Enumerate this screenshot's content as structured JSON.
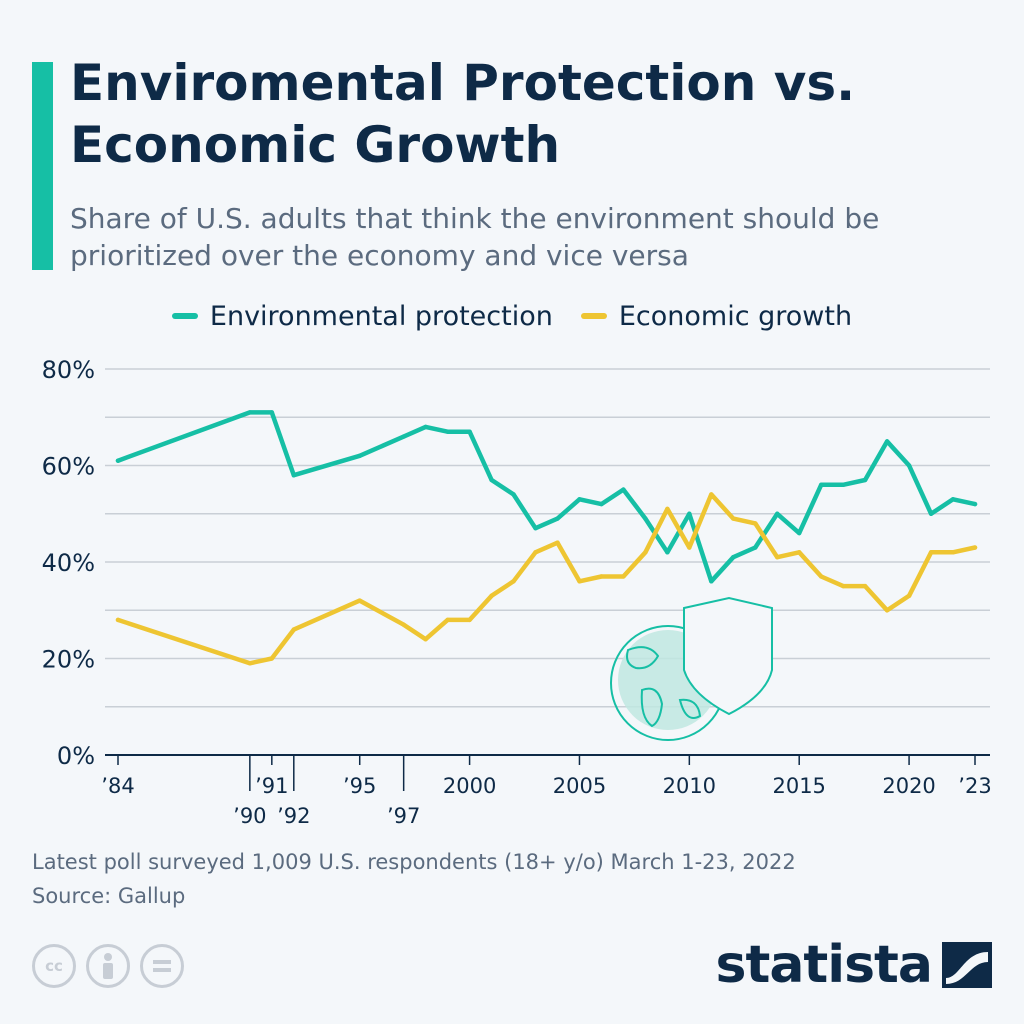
{
  "header": {
    "title": "Enviromental Protection vs. Economic Growth",
    "subtitle": "Share of U.S. adults that think the environment should be prioritized over the economy and vice versa"
  },
  "colors": {
    "accent": "#16bfa5",
    "environment": "#16bfa5",
    "economy": "#eec532",
    "text_dark": "#0e2a47",
    "grid": "#c9cfd6"
  },
  "chart_data": {
    "type": "line",
    "title": "Enviromental Protection vs. Economic Growth",
    "subtitle": "Share of U.S. adults that think the environment should be prioritized over the economy and vice versa",
    "x": [
      1984,
      1990,
      1991,
      1992,
      1995,
      1997,
      1998,
      1999,
      2000,
      2001,
      2002,
      2003,
      2004,
      2005,
      2006,
      2007,
      2008,
      2009,
      2010,
      2011,
      2012,
      2013,
      2014,
      2015,
      2016,
      2017,
      2018,
      2019,
      2020,
      2021,
      2022,
      2023
    ],
    "series": [
      {
        "name": "Environmental protection",
        "color": "#16bfa5",
        "values": [
          61,
          71,
          71,
          58,
          62,
          66,
          68,
          67,
          67,
          57,
          54,
          47,
          49,
          53,
          52,
          55,
          49,
          42,
          50,
          36,
          41,
          43,
          50,
          46,
          56,
          56,
          57,
          65,
          60,
          50,
          53,
          52
        ]
      },
      {
        "name": "Economic growth",
        "color": "#eec532",
        "values": [
          28,
          19,
          20,
          26,
          32,
          27,
          24,
          28,
          28,
          33,
          36,
          42,
          44,
          36,
          37,
          37,
          42,
          51,
          43,
          54,
          49,
          48,
          41,
          42,
          37,
          35,
          35,
          30,
          33,
          42,
          42,
          43
        ]
      }
    ],
    "ylim": [
      0,
      80
    ],
    "ytick_labels": [
      "0%",
      "20%",
      "40%",
      "60%",
      "80%"
    ],
    "xtick_labels_upper": [
      "’84",
      "’91",
      "’95",
      "2000",
      "2005",
      "2010",
      "2015",
      "2020",
      "’23"
    ],
    "xtick_labels_lower": [
      "’90",
      "’92",
      "’97"
    ],
    "grid": true,
    "legend_position": "top"
  },
  "footer": {
    "note": "Latest poll surveyed 1,009 U.S. respondents (18+ y/o) March 1-23, 2022",
    "source": "Source: Gallup",
    "brand": "statista"
  },
  "icons": [
    "cc-icon",
    "attribution-icon",
    "no-derivatives-icon",
    "globe-shield-icon",
    "statista-logo-icon"
  ]
}
